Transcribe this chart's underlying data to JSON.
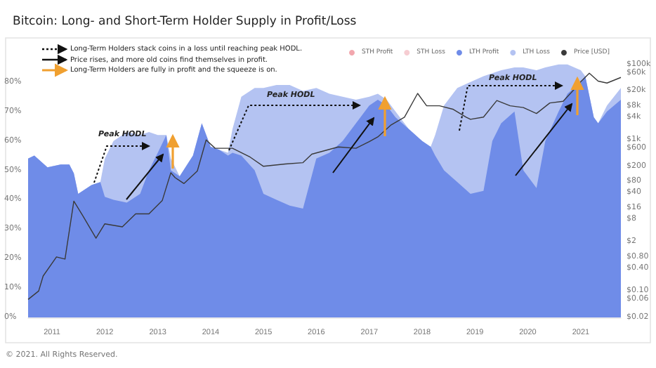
{
  "chart_data": {
    "type": "area",
    "title": "Bitcoin: Long- and Short-Term Holder Supply in Profit/Loss",
    "x": [
      "2010-07-20",
      "2010-09",
      "2010-12",
      "2011-03",
      "2011-05",
      "2011-06",
      "2011-07",
      "2011-10",
      "2011-12",
      "2012-01",
      "2012-03",
      "2012-06",
      "2012-09",
      "2012-11",
      "2013-01",
      "2013-03",
      "2013-04",
      "2013-06",
      "2013-09",
      "2013-11",
      "2014-01",
      "2014-03",
      "2014-05",
      "2014-06",
      "2014-08",
      "2014-11",
      "2015-01",
      "2015-04",
      "2015-07",
      "2015-10",
      "2016-01",
      "2016-04",
      "2016-07",
      "2016-10",
      "2017-01",
      "2017-03",
      "2017-05",
      "2017-07",
      "2017-10",
      "2018-01",
      "2018-03",
      "2018-04",
      "2018-06",
      "2018-09",
      "2018-12",
      "2019-03",
      "2019-05",
      "2019-07",
      "2019-10",
      "2019-12",
      "2020-03",
      "2020-05",
      "2020-08",
      "2020-10",
      "2021-01",
      "2021-02",
      "2021-04",
      "2021-05",
      "2021-07",
      "2021-10-05"
    ],
    "stacked": true,
    "series": [
      {
        "name": "STH Profit",
        "type": "area",
        "color": "#f2a7ae",
        "values": [
          null,
          null,
          null,
          null,
          null,
          null,
          null,
          null,
          null,
          null,
          null,
          null,
          null,
          null,
          null,
          null,
          null,
          null,
          null,
          null,
          null,
          null,
          null,
          null,
          null,
          null,
          null,
          null,
          null,
          null,
          null,
          null,
          null,
          null,
          null,
          null,
          null,
          null,
          null,
          null,
          null,
          null,
          null,
          null,
          null,
          null,
          null,
          null,
          null,
          null,
          null,
          null,
          null,
          null,
          null,
          null,
          null,
          null,
          null,
          null
        ]
      },
      {
        "name": "STH Loss",
        "type": "area",
        "color": "#f6cdd2",
        "values": [
          null,
          null,
          null,
          null,
          null,
          null,
          null,
          null,
          null,
          null,
          null,
          null,
          null,
          null,
          null,
          null,
          null,
          null,
          null,
          null,
          null,
          null,
          null,
          null,
          null,
          null,
          null,
          null,
          null,
          null,
          null,
          null,
          null,
          null,
          null,
          null,
          null,
          null,
          null,
          null,
          null,
          null,
          null,
          null,
          null,
          null,
          null,
          null,
          null,
          null,
          null,
          null,
          null,
          null,
          null,
          null,
          null,
          null,
          null,
          null
        ]
      },
      {
        "name": "LTH Profit",
        "color": "#6f8ce8",
        "values": [
          54,
          55,
          51,
          52,
          52,
          49,
          42,
          45,
          46,
          41,
          40,
          39,
          42,
          50,
          56,
          62,
          50,
          48,
          55,
          66,
          58,
          57,
          55,
          56,
          55,
          50,
          42,
          40,
          38,
          37,
          54,
          56,
          60,
          66,
          72,
          74,
          72,
          68,
          64,
          60,
          58,
          55,
          50,
          46,
          42,
          43,
          60,
          66,
          70,
          50,
          44,
          60,
          70,
          76,
          80,
          82,
          68,
          66,
          70,
          74
        ]
      },
      {
        "name": "LTH Loss",
        "color": "#b4c3f2",
        "values": [
          0,
          0,
          0,
          0,
          0,
          0,
          0,
          0,
          0,
          13,
          20,
          24,
          20,
          13,
          6,
          0,
          4,
          0,
          0,
          0,
          0,
          0,
          1,
          8,
          20,
          28,
          36,
          39,
          41,
          40,
          24,
          20,
          15,
          8,
          3,
          2,
          2,
          2,
          0,
          0,
          0,
          7,
          22,
          32,
          38,
          39,
          23,
          18,
          15,
          35,
          40,
          25,
          16,
          10,
          4,
          0,
          0,
          0,
          2,
          4
        ]
      },
      {
        "name": "Price [USD]",
        "type": "line",
        "axis": "y2",
        "color": "#3a3a3a",
        "x": [
          "2010-07-20",
          "2010-10",
          "2010-11",
          "2011-02",
          "2011-04",
          "2011-06",
          "2011-08",
          "2011-11",
          "2012-01",
          "2012-05",
          "2012-08",
          "2012-11",
          "2013-02",
          "2013-04",
          "2013-05",
          "2013-07",
          "2013-10",
          "2013-12",
          "2014-02",
          "2014-06",
          "2014-10",
          "2015-01",
          "2015-06",
          "2015-10",
          "2015-12",
          "2016-06",
          "2016-10",
          "2017-01",
          "2017-03",
          "2017-06",
          "2017-09",
          "2017-12",
          "2018-02",
          "2018-05",
          "2018-08",
          "2018-11",
          "2018-12",
          "2019-03",
          "2019-06",
          "2019-09",
          "2019-12",
          "2020-03",
          "2020-06",
          "2020-09",
          "2020-12",
          "2021-01",
          "2021-03",
          "2021-05",
          "2021-07",
          "2021-10-05"
        ],
        "values": [
          0.06,
          0.1,
          0.25,
          0.8,
          0.7,
          24,
          10,
          2.5,
          6,
          5,
          11,
          11,
          25,
          135,
          100,
          70,
          150,
          1000,
          600,
          600,
          350,
          200,
          230,
          250,
          420,
          650,
          600,
          900,
          1200,
          2500,
          4000,
          17000,
          8000,
          8000,
          6500,
          4000,
          3500,
          4000,
          11000,
          8000,
          7200,
          5000,
          9500,
          10500,
          25000,
          35000,
          58000,
          36000,
          32000,
          45000
        ]
      }
    ],
    "xlim": [
      "2010-07-20",
      "2021-10-05"
    ],
    "xticks": [
      "2011",
      "2012",
      "2013",
      "2014",
      "2015",
      "2016",
      "2017",
      "2018",
      "2019",
      "2020",
      "2021"
    ],
    "ylim": [
      0,
      95
    ],
    "yticks": [
      {
        "value": 0,
        "label": "0%"
      },
      {
        "value": 10,
        "label": "10%"
      },
      {
        "value": 20,
        "label": "20%"
      },
      {
        "value": 30,
        "label": "30%"
      },
      {
        "value": 40,
        "label": "40%"
      },
      {
        "value": 50,
        "label": "50%"
      },
      {
        "value": 60,
        "label": "60%"
      },
      {
        "value": 70,
        "label": "70%"
      },
      {
        "value": 80,
        "label": "80%"
      }
    ],
    "log": "y2",
    "y2lim": [
      0.02,
      500000
    ],
    "y2ticks": [
      {
        "value": 0.02,
        "label": "$0.02"
      },
      {
        "value": 0.06,
        "label": "$0.06"
      },
      {
        "value": 0.1,
        "label": "$0.10"
      },
      {
        "value": 0.4,
        "label": "$0.40"
      },
      {
        "value": 0.8,
        "label": "$0.80"
      },
      {
        "value": 2,
        "label": "$2"
      },
      {
        "value": 8,
        "label": "$8"
      },
      {
        "value": 16,
        "label": "$16"
      },
      {
        "value": 40,
        "label": "$40"
      },
      {
        "value": 80,
        "label": "$80"
      },
      {
        "value": 200,
        "label": "$200"
      },
      {
        "value": 600,
        "label": "$600"
      },
      {
        "value": 1000,
        "label": "$1k"
      },
      {
        "value": 4000,
        "label": "$4k"
      },
      {
        "value": 8000,
        "label": "$8k"
      },
      {
        "value": 20000,
        "label": "$20k"
      },
      {
        "value": 60000,
        "label": "$60k"
      },
      {
        "value": 100000,
        "label": "$100k"
      }
    ],
    "marker": "none",
    "legend": "top right",
    "annotations": [
      "Long-Term Holders stack coins in a loss until reaching peak HODL.",
      "Price rises, and more old coins find themselves in profit.",
      "Long-Term Holders are fully in profit and the squeeze is on.",
      "Peak HODL",
      "Peak HODL",
      "Peak HODL",
      "© 2021. All Rights Reserved."
    ]
  }
}
